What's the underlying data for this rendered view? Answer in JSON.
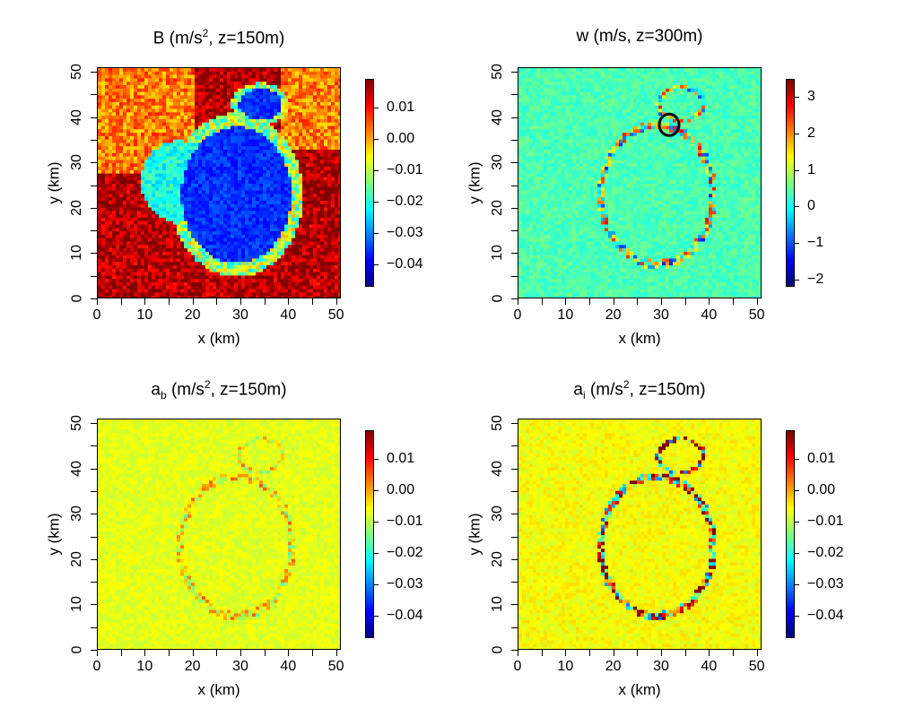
{
  "chart_data": [
    {
      "type": "heatmap",
      "title_main": "B",
      "title_sub": "",
      "title_units": "(m/s",
      "title_sup": "2",
      "title_rest": ",  z=150m)",
      "xlabel": "x (km)",
      "ylabel": "y (km)",
      "xlim": [
        0,
        51
      ],
      "ylim": [
        0,
        51
      ],
      "xticks": [
        "0",
        "10",
        "20",
        "30",
        "40",
        "50"
      ],
      "yticks": [
        "0",
        "10",
        "20",
        "30",
        "40",
        "50"
      ],
      "colorbar": {
        "range": [
          -0.047,
          0.019
        ],
        "ticks": [
          "0.01",
          "0.00",
          "−0.01",
          "−0.02",
          "−0.03",
          "−0.04"
        ],
        "tick_values": [
          0.01,
          0.0,
          -0.01,
          -0.02,
          -0.03,
          -0.04
        ]
      },
      "field": "negative buoyancy pool (blue) centered near x=30, y=25 with smaller pool near x=34, y=43; positive (red) background"
    },
    {
      "type": "heatmap",
      "title_main": "w",
      "title_sub": "",
      "title_units": "(m/s,",
      "title_sup": "",
      "title_rest": "  z=300m)",
      "xlabel": "x (km)",
      "ylabel": "y (km)",
      "xlim": [
        0,
        51
      ],
      "ylim": [
        0,
        51
      ],
      "xticks": [
        "0",
        "10",
        "20",
        "30",
        "40",
        "50"
      ],
      "yticks": [
        "0",
        "10",
        "20",
        "30",
        "40",
        "50"
      ],
      "colorbar": {
        "range": [
          -2.2,
          3.5
        ],
        "ticks": [
          "3",
          "2",
          "1",
          "0",
          "−1",
          "−2"
        ],
        "tick_values": [
          3,
          2,
          1,
          0,
          -1,
          -2
        ]
      },
      "annotation": {
        "type": "circle",
        "x": 31.5,
        "y": 38.5
      },
      "field": "vertical velocity; near zero (green) background with positive (red) edges along outflow boundaries"
    },
    {
      "type": "heatmap",
      "title_main": "a",
      "title_sub": "b",
      "title_units": "(m/s",
      "title_sup": "2",
      "title_rest": ",  z=150m)",
      "xlabel": "x (km)",
      "ylabel": "y (km)",
      "xlim": [
        0,
        51
      ],
      "ylim": [
        0,
        51
      ],
      "xticks": [
        "0",
        "10",
        "20",
        "30",
        "40",
        "50"
      ],
      "yticks": [
        "0",
        "10",
        "20",
        "30",
        "40",
        "50"
      ],
      "colorbar": {
        "range": [
          -0.047,
          0.019
        ],
        "ticks": [
          "0.01",
          "0.00",
          "−0.01",
          "−0.02",
          "−0.03",
          "−0.04"
        ],
        "tick_values": [
          0.01,
          0.0,
          -0.01,
          -0.02,
          -0.03,
          -0.04
        ]
      },
      "field": "buoyancy acceleration; mostly near zero with weak features along pool edges"
    },
    {
      "type": "heatmap",
      "title_main": "a",
      "title_sub": "i",
      "title_units": "(m/s",
      "title_sup": "2",
      "title_rest": ",  z=150m)",
      "xlabel": "x (km)",
      "ylabel": "y (km)",
      "xlim": [
        0,
        51
      ],
      "ylim": [
        0,
        51
      ],
      "xticks": [
        "0",
        "10",
        "20",
        "30",
        "40",
        "50"
      ],
      "yticks": [
        "0",
        "10",
        "20",
        "30",
        "40",
        "50"
      ],
      "colorbar": {
        "range": [
          -0.047,
          0.019
        ],
        "ticks": [
          "0.01",
          "0.00",
          "−0.01",
          "−0.02",
          "−0.03",
          "−0.04"
        ],
        "tick_values": [
          0.01,
          0.0,
          -0.01,
          -0.02,
          -0.03,
          -0.04
        ]
      },
      "field": "inertial acceleration; strong red/blue features along cold pool boundaries"
    }
  ],
  "colors": {
    "jet": [
      "#00007f",
      "#0000ff",
      "#007fff",
      "#00ffff",
      "#7fff7f",
      "#ffff00",
      "#ff7f00",
      "#ff0000",
      "#7f0000"
    ]
  }
}
